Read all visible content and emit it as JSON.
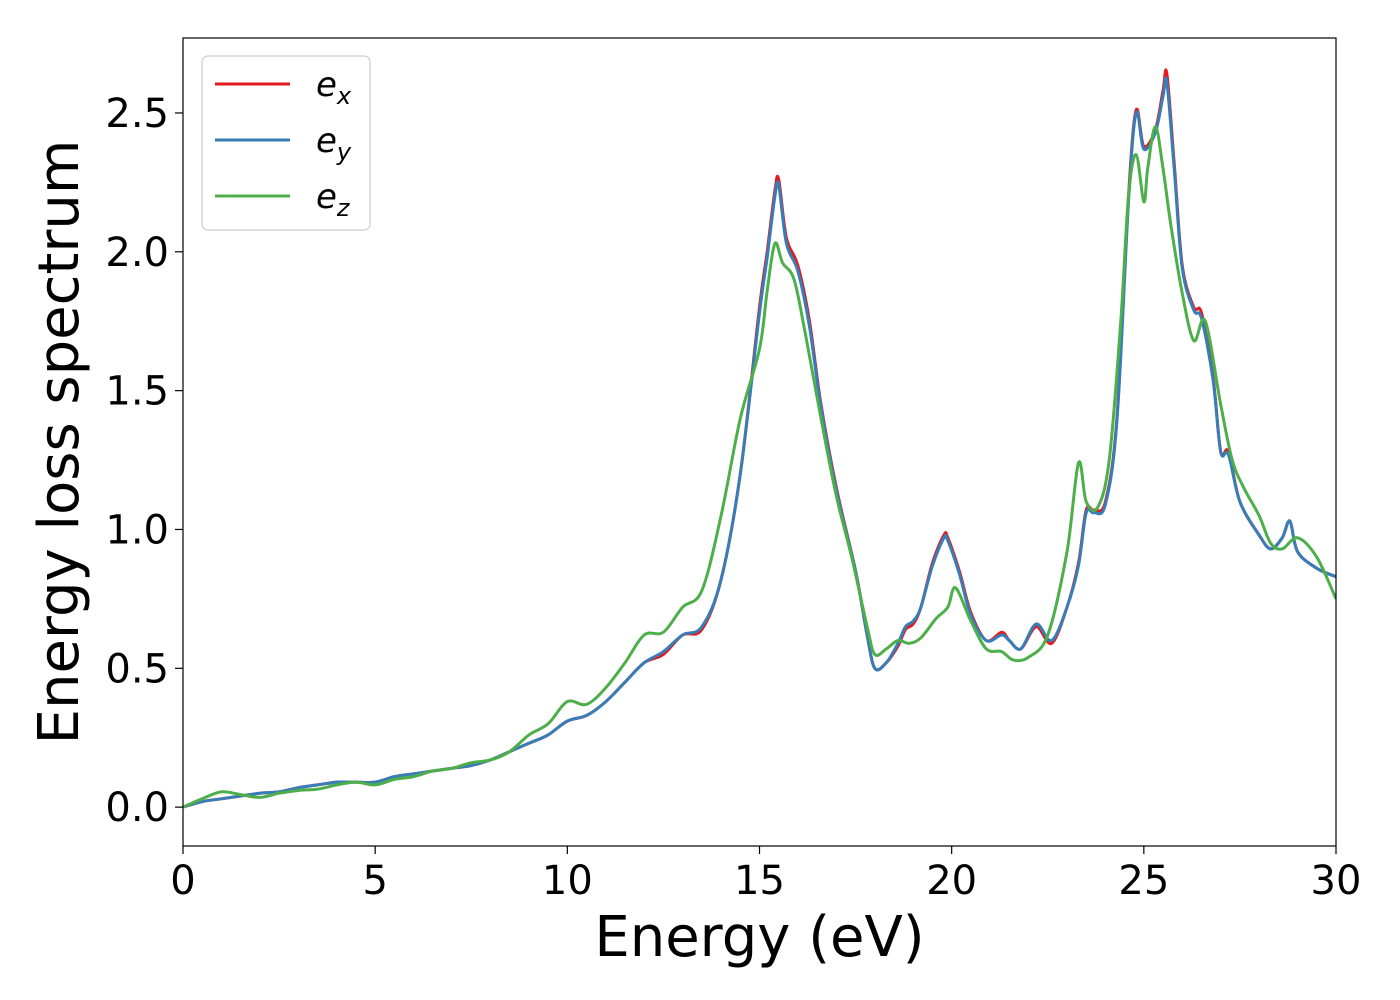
{
  "chart_data": {
    "type": "line",
    "title": "",
    "xlabel": "Energy (eV)",
    "ylabel": "Energy loss spectrum",
    "xlim": [
      0,
      30
    ],
    "ylim": [
      -0.14,
      2.77
    ],
    "xticks": [
      0,
      5,
      10,
      15,
      20,
      25,
      30
    ],
    "xtick_labels": [
      "0",
      "5",
      "10",
      "15",
      "20",
      "25",
      "30"
    ],
    "yticks": [
      0.0,
      0.5,
      1.0,
      1.5,
      2.0,
      2.5
    ],
    "ytick_labels": [
      "0.0",
      "0.5",
      "1.0",
      "1.5",
      "2.0",
      "2.5"
    ],
    "grid": false,
    "legend_position": "top-left",
    "series": [
      {
        "name": "e_x",
        "legend_base": "e",
        "legend_sub": "x",
        "color": "#e41a1c",
        "x": [
          0,
          0.5,
          1,
          1.5,
          2,
          2.5,
          3,
          3.5,
          4,
          4.5,
          5,
          5.5,
          6,
          6.5,
          7,
          7.5,
          8,
          8.5,
          9,
          9.5,
          10,
          10.5,
          11,
          11.5,
          12,
          12.5,
          13,
          13.5,
          14,
          14.5,
          15,
          15.2,
          15.4,
          15.5,
          15.7,
          16,
          16.3,
          16.6,
          17,
          17.5,
          17.8,
          18,
          18.3,
          18.6,
          18.8,
          19,
          19.2,
          19.5,
          19.8,
          19.9,
          20.2,
          20.5,
          20.9,
          21.3,
          21.5,
          21.8,
          22.2,
          22.6,
          23,
          23.3,
          23.5,
          23.7,
          24,
          24.3,
          24.6,
          24.8,
          25,
          25.3,
          25.5,
          25.6,
          25.8,
          26,
          26.3,
          26.5,
          26.8,
          27,
          27.2,
          27.5,
          28,
          28.3,
          28.6,
          28.8,
          29,
          29.5,
          30
        ],
        "y": [
          0.0,
          0.02,
          0.03,
          0.04,
          0.05,
          0.055,
          0.07,
          0.08,
          0.09,
          0.09,
          0.09,
          0.11,
          0.12,
          0.13,
          0.14,
          0.15,
          0.17,
          0.2,
          0.23,
          0.26,
          0.31,
          0.33,
          0.38,
          0.45,
          0.52,
          0.55,
          0.62,
          0.64,
          0.82,
          1.2,
          1.8,
          2.0,
          2.22,
          2.26,
          2.05,
          1.95,
          1.75,
          1.45,
          1.15,
          0.85,
          0.62,
          0.5,
          0.52,
          0.58,
          0.64,
          0.66,
          0.72,
          0.88,
          0.98,
          0.97,
          0.85,
          0.7,
          0.6,
          0.63,
          0.6,
          0.57,
          0.65,
          0.59,
          0.72,
          0.88,
          1.07,
          1.07,
          1.1,
          1.4,
          2.2,
          2.51,
          2.38,
          2.44,
          2.58,
          2.64,
          2.3,
          1.95,
          1.8,
          1.78,
          1.55,
          1.28,
          1.28,
          1.1,
          0.98,
          0.93,
          0.97,
          1.03,
          0.92,
          0.86,
          0.83
        ]
      },
      {
        "name": "e_y",
        "legend_base": "e",
        "legend_sub": "y",
        "color": "#377eb8",
        "x": [
          0,
          0.5,
          1,
          1.5,
          2,
          2.5,
          3,
          3.5,
          4,
          4.5,
          5,
          5.5,
          6,
          6.5,
          7,
          7.5,
          8,
          8.5,
          9,
          9.5,
          10,
          10.5,
          11,
          11.5,
          12,
          12.5,
          13,
          13.5,
          14,
          14.5,
          15,
          15.2,
          15.4,
          15.5,
          15.7,
          16,
          16.3,
          16.6,
          17,
          17.5,
          17.8,
          18,
          18.3,
          18.6,
          18.8,
          19,
          19.2,
          19.5,
          19.8,
          19.9,
          20.2,
          20.5,
          20.9,
          21.3,
          21.5,
          21.8,
          22.2,
          22.6,
          23,
          23.3,
          23.5,
          23.7,
          24,
          24.3,
          24.6,
          24.8,
          25,
          25.3,
          25.5,
          25.6,
          25.8,
          26,
          26.3,
          26.5,
          26.8,
          27,
          27.2,
          27.5,
          28,
          28.3,
          28.6,
          28.8,
          29,
          29.5,
          30
        ],
        "y": [
          0.0,
          0.02,
          0.03,
          0.04,
          0.05,
          0.055,
          0.07,
          0.08,
          0.09,
          0.09,
          0.09,
          0.11,
          0.12,
          0.13,
          0.14,
          0.15,
          0.17,
          0.2,
          0.23,
          0.26,
          0.31,
          0.33,
          0.38,
          0.45,
          0.52,
          0.56,
          0.62,
          0.65,
          0.82,
          1.2,
          1.78,
          1.98,
          2.2,
          2.24,
          2.03,
          1.93,
          1.73,
          1.44,
          1.14,
          0.85,
          0.62,
          0.5,
          0.52,
          0.59,
          0.65,
          0.67,
          0.72,
          0.87,
          0.97,
          0.96,
          0.84,
          0.69,
          0.6,
          0.62,
          0.6,
          0.57,
          0.66,
          0.6,
          0.72,
          0.87,
          1.06,
          1.06,
          1.09,
          1.39,
          2.18,
          2.5,
          2.37,
          2.43,
          2.56,
          2.61,
          2.28,
          1.94,
          1.79,
          1.76,
          1.54,
          1.28,
          1.27,
          1.1,
          0.98,
          0.93,
          0.97,
          1.03,
          0.92,
          0.86,
          0.83
        ]
      },
      {
        "name": "e_z",
        "legend_base": "e",
        "legend_sub": "z",
        "color": "#4daf4a",
        "x": [
          0,
          0.5,
          1,
          1.5,
          2,
          2.5,
          3,
          3.5,
          4,
          4.5,
          5,
          5.5,
          6,
          6.5,
          7,
          7.5,
          8,
          8.5,
          9,
          9.5,
          10,
          10.5,
          11,
          11.5,
          12,
          12.5,
          13,
          13.5,
          14,
          14.5,
          15,
          15.2,
          15.4,
          15.6,
          15.9,
          16.2,
          16.6,
          17,
          17.4,
          17.8,
          18,
          18.3,
          18.6,
          18.9,
          19.2,
          19.6,
          19.9,
          20.1,
          20.5,
          20.9,
          21.3,
          21.6,
          22,
          22.5,
          23,
          23.3,
          23.5,
          23.8,
          24.1,
          24.4,
          24.6,
          24.8,
          25,
          25.1,
          25.3,
          25.5,
          25.7,
          26,
          26.3,
          26.6,
          27,
          27.3,
          27.6,
          28,
          28.3,
          28.6,
          29,
          29.5,
          30
        ],
        "y": [
          0.0,
          0.03,
          0.055,
          0.045,
          0.035,
          0.05,
          0.06,
          0.065,
          0.08,
          0.09,
          0.08,
          0.1,
          0.11,
          0.13,
          0.14,
          0.16,
          0.17,
          0.2,
          0.26,
          0.3,
          0.38,
          0.37,
          0.43,
          0.52,
          0.62,
          0.63,
          0.72,
          0.78,
          1.05,
          1.4,
          1.65,
          1.86,
          2.03,
          1.96,
          1.9,
          1.7,
          1.4,
          1.12,
          0.9,
          0.65,
          0.55,
          0.57,
          0.6,
          0.59,
          0.61,
          0.68,
          0.72,
          0.79,
          0.67,
          0.57,
          0.56,
          0.53,
          0.54,
          0.62,
          0.92,
          1.24,
          1.1,
          1.08,
          1.25,
          1.75,
          2.2,
          2.35,
          2.18,
          2.3,
          2.45,
          2.3,
          2.1,
          1.85,
          1.68,
          1.75,
          1.45,
          1.25,
          1.15,
          1.05,
          0.95,
          0.93,
          0.97,
          0.9,
          0.75
        ]
      }
    ]
  }
}
